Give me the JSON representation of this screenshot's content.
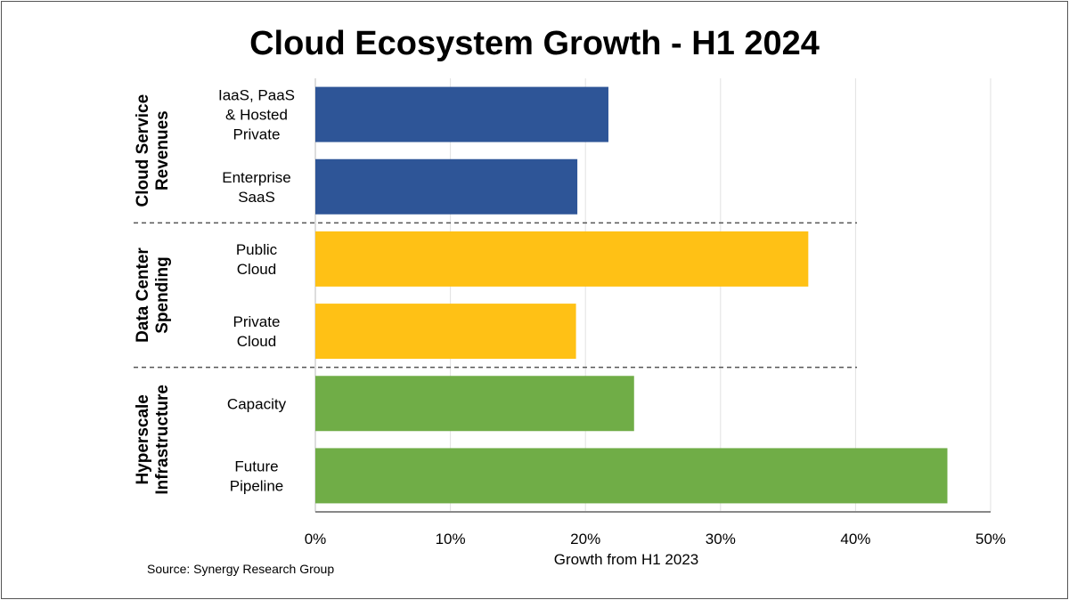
{
  "chart_data": {
    "type": "bar",
    "orientation": "horizontal",
    "title": "Cloud Ecosystem Growth - H1 2024",
    "xlabel": "Growth from H1 2023",
    "ylabel": "",
    "xlim": [
      0,
      50
    ],
    "xticks": [
      "0%",
      "10%",
      "20%",
      "30%",
      "40%",
      "50%"
    ],
    "grid": "vertical",
    "groups": [
      {
        "name": "Cloud Service Revenues",
        "name_lines": [
          "Cloud Service",
          "Revenues"
        ],
        "color": "#2E5597",
        "bars": [
          {
            "label": "IaaS, PaaS & Hosted Private",
            "label_lines": [
              "IaaS, PaaS",
              "& Hosted",
              "Private"
            ],
            "value": 21.7
          },
          {
            "label": "Enterprise SaaS",
            "label_lines": [
              "Enterprise",
              "SaaS"
            ],
            "value": 19.4
          }
        ]
      },
      {
        "name": "Data Center Spending",
        "name_lines": [
          "Data Center",
          "Spending"
        ],
        "color": "#FFC115",
        "bars": [
          {
            "label": "Public Cloud",
            "label_lines": [
              "Public",
              "Cloud"
            ],
            "value": 36.5
          },
          {
            "label": "Private Cloud",
            "label_lines": [
              "Private",
              "Cloud"
            ],
            "value": 19.3
          }
        ]
      },
      {
        "name": "Hyperscale Infrastructure",
        "name_lines": [
          "Hyperscale",
          "Infrastructure"
        ],
        "color": "#70AD47",
        "bars": [
          {
            "label": "Capacity",
            "label_lines": [
              "Capacity"
            ],
            "value": 23.6
          },
          {
            "label": "Future Pipeline",
            "label_lines": [
              "Future",
              "Pipeline"
            ],
            "value": 46.8
          }
        ]
      }
    ],
    "source": "Source: Synergy Research Group"
  }
}
